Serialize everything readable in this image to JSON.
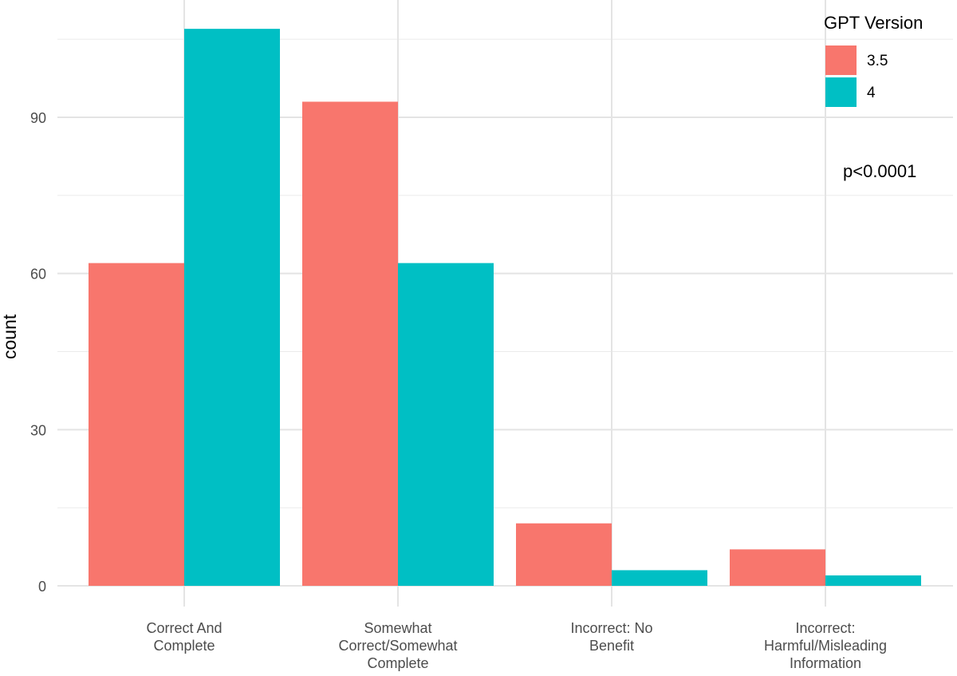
{
  "chart_data": {
    "type": "bar",
    "categories": [
      [
        "Correct And",
        "Complete"
      ],
      [
        "Somewhat",
        "Correct/Somewhat",
        "Complete"
      ],
      [
        "Incorrect: No",
        "Benefit"
      ],
      [
        "Incorrect:",
        "Harmful/Misleading",
        "Information"
      ]
    ],
    "series": [
      {
        "name": "3.5",
        "values": [
          62,
          93,
          12,
          7
        ],
        "color": "#F8766D"
      },
      {
        "name": "4",
        "values": [
          107,
          62,
          3,
          2
        ],
        "color": "#00BFC4"
      }
    ],
    "ylabel": "count",
    "xlabel": "",
    "ylim": [
      0,
      107
    ],
    "yticks": [
      0,
      30,
      60,
      90
    ],
    "grid": true,
    "legend": {
      "title": "GPT Version",
      "placement": "top-right"
    },
    "annotation": "p<0.0001"
  }
}
